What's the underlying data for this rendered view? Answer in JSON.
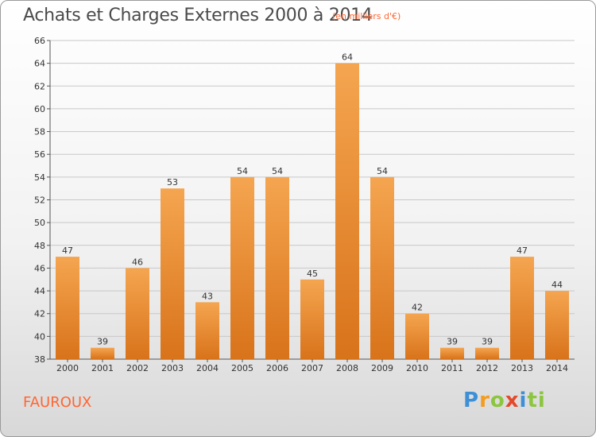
{
  "header": {
    "title": "Achats et Charges Externes 2000 à 2014",
    "unit_note": "(en milliers d'€)"
  },
  "footer": {
    "commune": "FAUROUX",
    "logo_text": "Proxiti"
  },
  "colors": {
    "bar_top": "#f5a550",
    "bar_bottom": "#d8731a",
    "grid": "#c8c8c8",
    "accent": "#ff6633"
  },
  "chart_data": {
    "type": "bar",
    "title": "Achats et Charges Externes 2000 à 2014",
    "subtitle": "(en milliers d'€)",
    "xlabel": "",
    "ylabel": "",
    "categories": [
      "2000",
      "2001",
      "2002",
      "2003",
      "2004",
      "2005",
      "2006",
      "2007",
      "2008",
      "2009",
      "2010",
      "2011",
      "2012",
      "2013",
      "2014"
    ],
    "values": [
      47,
      39,
      46,
      53,
      43,
      54,
      54,
      45,
      64,
      54,
      42,
      39,
      39,
      47,
      44
    ],
    "ylim": [
      38,
      66
    ],
    "yticks": [
      38,
      40,
      42,
      44,
      46,
      48,
      50,
      52,
      54,
      56,
      58,
      60,
      62,
      64,
      66
    ],
    "grid": true,
    "legend": "none"
  }
}
